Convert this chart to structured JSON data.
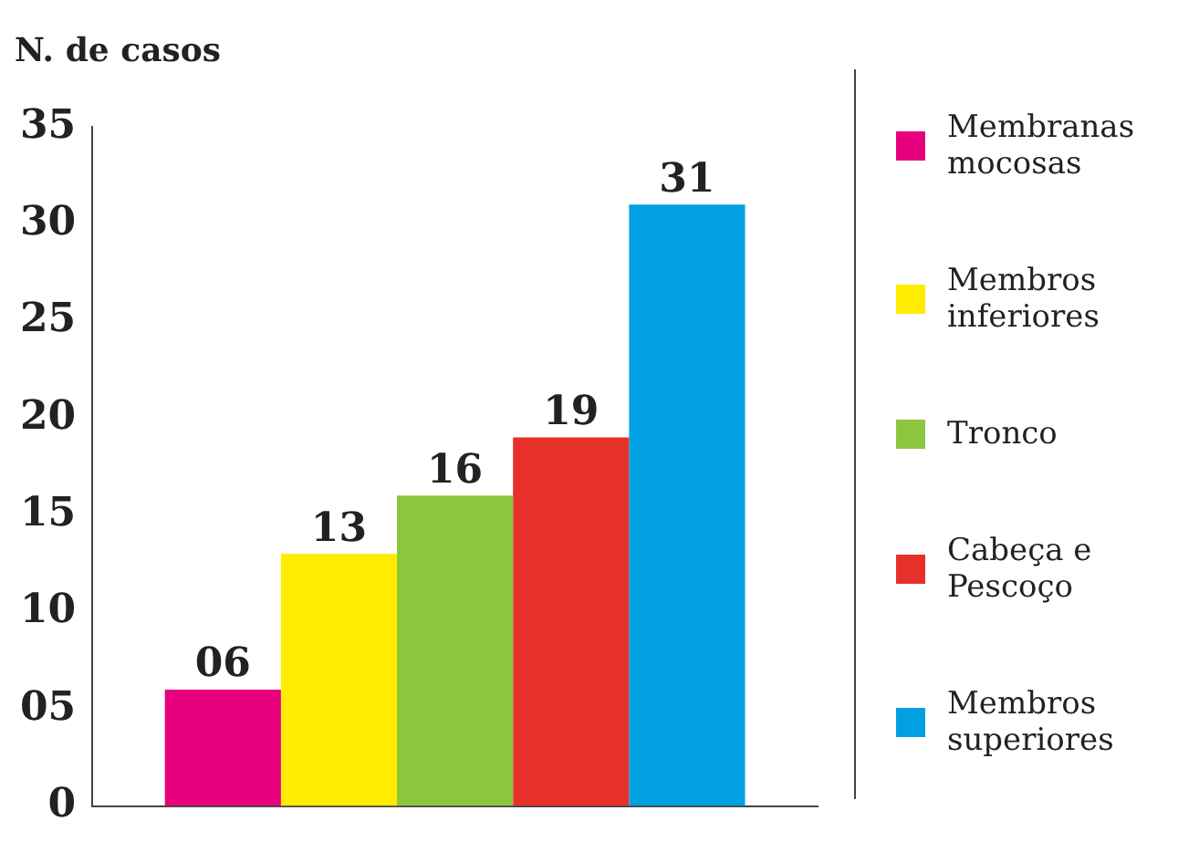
{
  "chart_data": {
    "type": "bar",
    "ylabel": "N. de casos",
    "categories": [
      null
    ],
    "series": [
      {
        "name": "Membranas mocosas",
        "color": "#e6007e",
        "values": [
          6
        ],
        "value_labels": [
          "06"
        ]
      },
      {
        "name": "Membros inferiores",
        "color": "#ffec00",
        "values": [
          13
        ],
        "value_labels": [
          "13"
        ]
      },
      {
        "name": "Tronco",
        "color": "#8cc63f",
        "values": [
          16
        ],
        "value_labels": [
          "16"
        ]
      },
      {
        "name": "Cabeça e Pescoço",
        "color": "#e8302a",
        "values": [
          19
        ],
        "value_labels": [
          "19"
        ]
      },
      {
        "name": "Membros superiores",
        "color": "#00a0e3",
        "values": [
          31
        ],
        "value_labels": [
          "31"
        ]
      }
    ],
    "ylim": [
      0,
      35
    ],
    "yticks": [
      0,
      {
        "value": 5,
        "label": "05"
      },
      10,
      15,
      20,
      25,
      30,
      35
    ],
    "grid": false,
    "legend": "right"
  }
}
